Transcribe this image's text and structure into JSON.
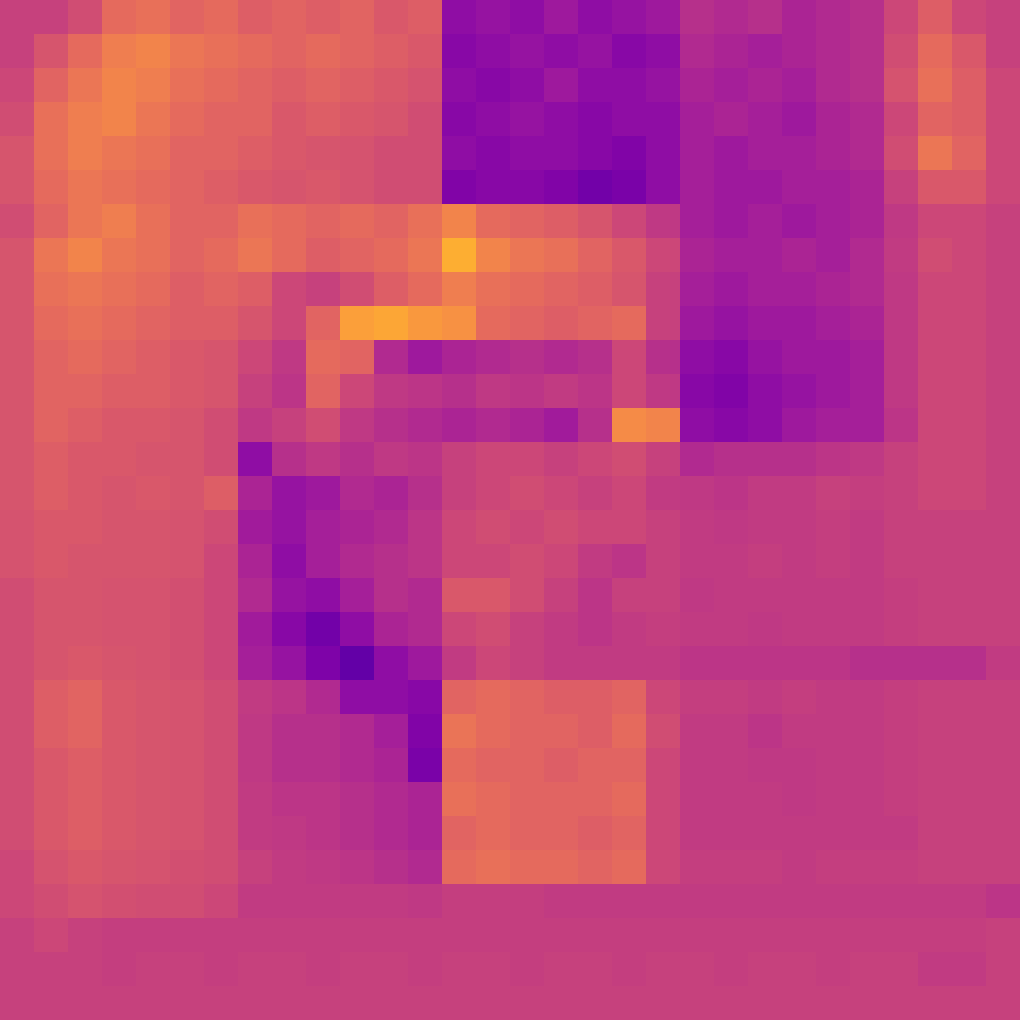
{
  "chart_data": {
    "type": "heatmap",
    "color": "plasma",
    "tick_labels": false,
    "color_range": [
      0,
      1
    ],
    "values": [
      [
        0.48,
        0.48,
        0.52,
        0.62,
        0.64,
        0.6,
        0.62,
        0.58,
        0.6,
        0.58,
        0.6,
        0.56,
        0.58,
        0.3,
        0.32,
        0.3,
        0.34,
        0.3,
        0.32,
        0.34,
        0.42,
        0.4,
        0.42,
        0.38,
        0.4,
        0.42,
        0.5,
        0.58,
        0.5,
        0.48
      ],
      [
        0.48,
        0.55,
        0.62,
        0.68,
        0.7,
        0.66,
        0.64,
        0.62,
        0.6,
        0.62,
        0.6,
        0.58,
        0.56,
        0.28,
        0.3,
        0.32,
        0.3,
        0.32,
        0.28,
        0.3,
        0.4,
        0.38,
        0.36,
        0.38,
        0.4,
        0.42,
        0.52,
        0.62,
        0.56,
        0.48
      ],
      [
        0.5,
        0.6,
        0.66,
        0.7,
        0.68,
        0.64,
        0.62,
        0.6,
        0.58,
        0.6,
        0.58,
        0.56,
        0.54,
        0.3,
        0.28,
        0.3,
        0.34,
        0.3,
        0.3,
        0.32,
        0.38,
        0.36,
        0.38,
        0.36,
        0.4,
        0.42,
        0.54,
        0.64,
        0.58,
        0.5
      ],
      [
        0.52,
        0.64,
        0.68,
        0.7,
        0.66,
        0.62,
        0.6,
        0.6,
        0.56,
        0.58,
        0.56,
        0.55,
        0.52,
        0.28,
        0.3,
        0.32,
        0.3,
        0.28,
        0.3,
        0.3,
        0.36,
        0.38,
        0.36,
        0.34,
        0.38,
        0.4,
        0.5,
        0.6,
        0.58,
        0.5
      ],
      [
        0.55,
        0.64,
        0.68,
        0.66,
        0.64,
        0.6,
        0.6,
        0.58,
        0.56,
        0.55,
        0.54,
        0.52,
        0.52,
        0.3,
        0.28,
        0.3,
        0.3,
        0.28,
        0.26,
        0.3,
        0.36,
        0.34,
        0.36,
        0.36,
        0.38,
        0.4,
        0.52,
        0.66,
        0.6,
        0.5
      ],
      [
        0.55,
        0.62,
        0.66,
        0.64,
        0.62,
        0.6,
        0.58,
        0.56,
        0.55,
        0.56,
        0.54,
        0.52,
        0.52,
        0.26,
        0.28,
        0.28,
        0.26,
        0.22,
        0.24,
        0.3,
        0.36,
        0.34,
        0.34,
        0.36,
        0.36,
        0.38,
        0.48,
        0.56,
        0.56,
        0.5
      ],
      [
        0.52,
        0.6,
        0.66,
        0.68,
        0.64,
        0.6,
        0.6,
        0.64,
        0.62,
        0.6,
        0.62,
        0.6,
        0.64,
        0.7,
        0.62,
        0.6,
        0.58,
        0.55,
        0.5,
        0.45,
        0.36,
        0.34,
        0.36,
        0.34,
        0.36,
        0.38,
        0.45,
        0.5,
        0.5,
        0.48
      ],
      [
        0.55,
        0.66,
        0.7,
        0.66,
        0.64,
        0.6,
        0.62,
        0.66,
        0.62,
        0.58,
        0.6,
        0.62,
        0.66,
        0.82,
        0.7,
        0.66,
        0.64,
        0.6,
        0.56,
        0.5,
        0.38,
        0.36,
        0.36,
        0.38,
        0.36,
        0.4,
        0.46,
        0.52,
        0.5,
        0.48
      ],
      [
        0.55,
        0.64,
        0.66,
        0.64,
        0.62,
        0.58,
        0.6,
        0.58,
        0.5,
        0.48,
        0.52,
        0.58,
        0.62,
        0.68,
        0.64,
        0.62,
        0.6,
        0.58,
        0.55,
        0.48,
        0.36,
        0.34,
        0.36,
        0.36,
        0.38,
        0.4,
        0.45,
        0.5,
        0.5,
        0.48
      ],
      [
        0.55,
        0.62,
        0.64,
        0.62,
        0.6,
        0.58,
        0.58,
        0.55,
        0.5,
        0.6,
        0.78,
        0.8,
        0.76,
        0.74,
        0.62,
        0.6,
        0.58,
        0.6,
        0.62,
        0.48,
        0.34,
        0.32,
        0.34,
        0.34,
        0.36,
        0.38,
        0.45,
        0.5,
        0.5,
        0.48
      ],
      [
        0.55,
        0.6,
        0.62,
        0.6,
        0.58,
        0.56,
        0.55,
        0.5,
        0.45,
        0.62,
        0.6,
        0.4,
        0.34,
        0.38,
        0.4,
        0.42,
        0.4,
        0.42,
        0.5,
        0.42,
        0.3,
        0.28,
        0.32,
        0.34,
        0.34,
        0.36,
        0.45,
        0.5,
        0.5,
        0.48
      ],
      [
        0.55,
        0.6,
        0.6,
        0.58,
        0.58,
        0.56,
        0.55,
        0.48,
        0.44,
        0.6,
        0.5,
        0.45,
        0.44,
        0.42,
        0.45,
        0.44,
        0.46,
        0.44,
        0.5,
        0.45,
        0.28,
        0.26,
        0.3,
        0.32,
        0.34,
        0.36,
        0.45,
        0.5,
        0.5,
        0.48
      ],
      [
        0.55,
        0.6,
        0.58,
        0.56,
        0.56,
        0.55,
        0.52,
        0.45,
        0.48,
        0.52,
        0.45,
        0.42,
        0.4,
        0.38,
        0.4,
        0.38,
        0.35,
        0.42,
        0.72,
        0.7,
        0.3,
        0.28,
        0.3,
        0.34,
        0.36,
        0.36,
        0.44,
        0.5,
        0.5,
        0.48
      ],
      [
        0.55,
        0.58,
        0.56,
        0.56,
        0.55,
        0.55,
        0.52,
        0.3,
        0.42,
        0.45,
        0.42,
        0.45,
        0.44,
        0.48,
        0.5,
        0.5,
        0.48,
        0.5,
        0.52,
        0.48,
        0.4,
        0.42,
        0.42,
        0.42,
        0.44,
        0.45,
        0.48,
        0.5,
        0.5,
        0.48
      ],
      [
        0.55,
        0.58,
        0.56,
        0.55,
        0.56,
        0.55,
        0.58,
        0.38,
        0.32,
        0.34,
        0.4,
        0.38,
        0.42,
        0.48,
        0.5,
        0.52,
        0.5,
        0.48,
        0.5,
        0.46,
        0.45,
        0.44,
        0.46,
        0.46,
        0.48,
        0.47,
        0.48,
        0.5,
        0.5,
        0.48
      ],
      [
        0.54,
        0.56,
        0.56,
        0.55,
        0.55,
        0.54,
        0.52,
        0.35,
        0.32,
        0.36,
        0.38,
        0.4,
        0.44,
        0.5,
        0.52,
        0.5,
        0.52,
        0.5,
        0.5,
        0.48,
        0.46,
        0.45,
        0.46,
        0.46,
        0.47,
        0.46,
        0.48,
        0.48,
        0.48,
        0.48
      ],
      [
        0.54,
        0.56,
        0.55,
        0.55,
        0.55,
        0.54,
        0.5,
        0.38,
        0.3,
        0.36,
        0.4,
        0.42,
        0.44,
        0.5,
        0.5,
        0.52,
        0.5,
        0.46,
        0.44,
        0.48,
        0.46,
        0.46,
        0.47,
        0.46,
        0.47,
        0.46,
        0.48,
        0.48,
        0.48,
        0.48
      ],
      [
        0.52,
        0.55,
        0.55,
        0.54,
        0.54,
        0.53,
        0.5,
        0.4,
        0.32,
        0.3,
        0.36,
        0.42,
        0.4,
        0.56,
        0.56,
        0.52,
        0.48,
        0.44,
        0.48,
        0.48,
        0.45,
        0.46,
        0.46,
        0.46,
        0.46,
        0.46,
        0.47,
        0.48,
        0.48,
        0.48
      ],
      [
        0.52,
        0.55,
        0.55,
        0.54,
        0.54,
        0.53,
        0.5,
        0.35,
        0.28,
        0.22,
        0.3,
        0.38,
        0.4,
        0.5,
        0.52,
        0.48,
        0.46,
        0.44,
        0.46,
        0.47,
        0.46,
        0.46,
        0.45,
        0.46,
        0.46,
        0.46,
        0.47,
        0.48,
        0.48,
        0.48
      ],
      [
        0.52,
        0.55,
        0.56,
        0.55,
        0.54,
        0.53,
        0.5,
        0.36,
        0.32,
        0.25,
        0.18,
        0.3,
        0.34,
        0.46,
        0.5,
        0.48,
        0.46,
        0.46,
        0.46,
        0.46,
        0.44,
        0.44,
        0.44,
        0.44,
        0.44,
        0.42,
        0.42,
        0.42,
        0.42,
        0.46
      ],
      [
        0.52,
        0.58,
        0.6,
        0.56,
        0.55,
        0.54,
        0.52,
        0.46,
        0.44,
        0.4,
        0.3,
        0.3,
        0.28,
        0.6,
        0.62,
        0.6,
        0.58,
        0.58,
        0.6,
        0.5,
        0.47,
        0.47,
        0.46,
        0.47,
        0.46,
        0.46,
        0.47,
        0.48,
        0.48,
        0.48
      ],
      [
        0.52,
        0.58,
        0.6,
        0.56,
        0.55,
        0.54,
        0.52,
        0.45,
        0.42,
        0.42,
        0.4,
        0.36,
        0.26,
        0.65,
        0.62,
        0.6,
        0.6,
        0.58,
        0.62,
        0.52,
        0.46,
        0.46,
        0.44,
        0.46,
        0.46,
        0.46,
        0.47,
        0.48,
        0.48,
        0.48
      ],
      [
        0.52,
        0.56,
        0.58,
        0.56,
        0.55,
        0.54,
        0.52,
        0.45,
        0.42,
        0.42,
        0.4,
        0.38,
        0.24,
        0.62,
        0.6,
        0.6,
        0.58,
        0.6,
        0.6,
        0.5,
        0.46,
        0.46,
        0.45,
        0.45,
        0.46,
        0.46,
        0.47,
        0.48,
        0.48,
        0.48
      ],
      [
        0.52,
        0.56,
        0.58,
        0.56,
        0.55,
        0.54,
        0.52,
        0.46,
        0.44,
        0.44,
        0.42,
        0.4,
        0.38,
        0.64,
        0.62,
        0.6,
        0.6,
        0.6,
        0.62,
        0.5,
        0.46,
        0.46,
        0.46,
        0.45,
        0.46,
        0.46,
        0.47,
        0.48,
        0.48,
        0.48
      ],
      [
        0.52,
        0.56,
        0.58,
        0.56,
        0.55,
        0.54,
        0.52,
        0.46,
        0.45,
        0.44,
        0.42,
        0.4,
        0.38,
        0.6,
        0.62,
        0.6,
        0.6,
        0.58,
        0.6,
        0.5,
        0.46,
        0.46,
        0.46,
        0.46,
        0.46,
        0.46,
        0.46,
        0.48,
        0.48,
        0.48
      ],
      [
        0.5,
        0.54,
        0.56,
        0.55,
        0.54,
        0.53,
        0.52,
        0.48,
        0.46,
        0.45,
        0.44,
        0.42,
        0.4,
        0.62,
        0.64,
        0.62,
        0.62,
        0.6,
        0.62,
        0.5,
        0.47,
        0.47,
        0.47,
        0.46,
        0.47,
        0.47,
        0.47,
        0.48,
        0.48,
        0.48
      ],
      [
        0.5,
        0.52,
        0.54,
        0.53,
        0.52,
        0.52,
        0.5,
        0.46,
        0.46,
        0.46,
        0.46,
        0.46,
        0.45,
        0.47,
        0.47,
        0.47,
        0.46,
        0.46,
        0.46,
        0.46,
        0.46,
        0.46,
        0.46,
        0.46,
        0.46,
        0.46,
        0.46,
        0.46,
        0.46,
        0.44
      ],
      [
        0.48,
        0.5,
        0.48,
        0.47,
        0.47,
        0.47,
        0.47,
        0.47,
        0.47,
        0.47,
        0.47,
        0.47,
        0.47,
        0.47,
        0.47,
        0.47,
        0.47,
        0.47,
        0.47,
        0.47,
        0.47,
        0.47,
        0.47,
        0.47,
        0.47,
        0.47,
        0.47,
        0.47,
        0.47,
        0.48
      ],
      [
        0.48,
        0.48,
        0.48,
        0.47,
        0.48,
        0.48,
        0.47,
        0.48,
        0.48,
        0.47,
        0.48,
        0.48,
        0.47,
        0.48,
        0.48,
        0.47,
        0.48,
        0.48,
        0.47,
        0.48,
        0.48,
        0.47,
        0.48,
        0.48,
        0.47,
        0.48,
        0.48,
        0.46,
        0.46,
        0.48
      ],
      [
        0.48,
        0.48,
        0.48,
        0.48,
        0.48,
        0.48,
        0.48,
        0.48,
        0.48,
        0.48,
        0.48,
        0.48,
        0.48,
        0.48,
        0.48,
        0.48,
        0.48,
        0.48,
        0.48,
        0.48,
        0.48,
        0.48,
        0.48,
        0.48,
        0.48,
        0.48,
        0.48,
        0.48,
        0.48,
        0.48
      ]
    ]
  }
}
